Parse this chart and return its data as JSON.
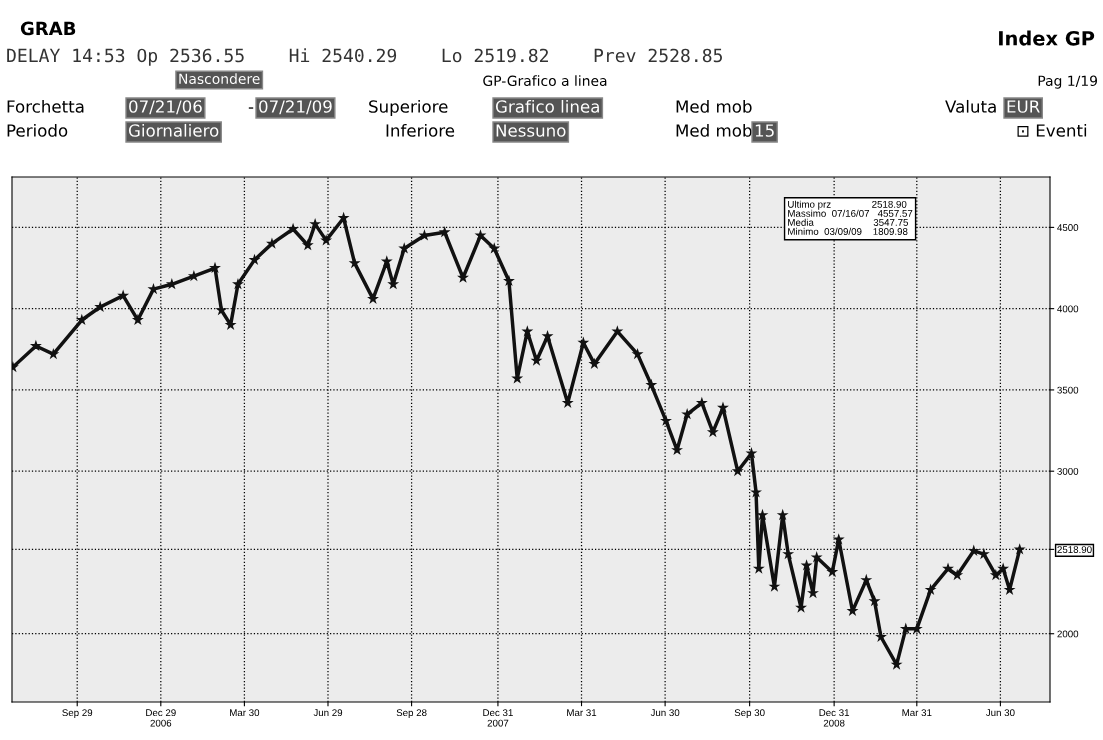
{
  "chart_data": {
    "type": "line",
    "title": "GRAB",
    "subtitle": "DELAY 14:53 Op 2536.55    Hi 2540.29    Lo 2519.82    Prev 2528.85",
    "annotations": [
      "Index GP",
      "Nascondere",
      "GP-Grafico a linea",
      "Pag 1/19",
      "Forchetta",
      "07/21/06",
      "-",
      "07/21/09",
      "Superiore",
      "Grafico linea",
      "Med mob",
      "Valuta",
      "EUR",
      "Periodo",
      "Giornaliero",
      "Inferiore",
      "Nessuno",
      "Med mob",
      "15",
      "⊡ Eventi",
      "Ultimo prz               2518.90\nMassimo  07/16/07   4557.57\nMedia                      3547.75\nMinimo  03/09/09    1809.98"
    ],
    "series": [
      {
        "color": "#111111",
        "x": [
          "2006-07-21",
          "2006-08-15",
          "2006-09-03",
          "2006-10-04",
          "2006-10-24",
          "2006-11-18",
          "2006-12-04",
          "2006-12-21",
          "2007-01-10",
          "2007-02-03",
          "2007-02-26",
          "2007-03-05",
          "2007-03-15",
          "2007-03-23",
          "2007-04-10",
          "2007-04-29",
          "2007-05-22",
          "2007-06-07",
          "2007-06-15",
          "2007-06-27",
          "2007-07-16",
          "2007-07-28",
          "2007-08-17",
          "2007-09-01",
          "2007-09-08",
          "2007-09-20",
          "2007-10-12",
          "2007-11-03",
          "2007-11-23",
          "2007-12-12",
          "2007-12-27",
          "2008-01-12",
          "2008-01-21",
          "2008-02-01",
          "2008-02-11",
          "2008-02-23",
          "2008-03-16",
          "2008-04-02",
          "2008-04-14",
          "2008-05-09",
          "2008-05-31",
          "2008-06-15",
          "2008-07-01",
          "2008-07-13",
          "2008-07-24",
          "2008-08-09",
          "2008-08-21",
          "2008-09-01",
          "2008-09-17",
          "2008-10-02",
          "2008-10-07",
          "2008-10-10",
          "2008-10-14",
          "2008-10-27",
          "2008-11-05",
          "2008-11-11",
          "2008-11-25",
          "2008-12-01",
          "2008-12-08",
          "2008-12-12",
          "2008-12-29",
          "2009-01-05",
          "2009-01-20",
          "2009-02-04",
          "2009-02-13",
          "2009-02-20",
          "2009-03-09",
          "2009-03-19",
          "2009-03-31",
          "2009-04-15",
          "2009-05-04",
          "2009-05-14",
          "2009-06-01",
          "2009-06-12",
          "2009-06-25",
          "2009-07-03",
          "2009-07-10",
          "2009-07-21"
        ],
        "values": [
          3640,
          3770,
          3720,
          3930,
          4010,
          4080,
          3930,
          4120,
          4150,
          4200,
          4250,
          3990,
          3900,
          4150,
          4300,
          4400,
          4490,
          4390,
          4520,
          4420,
          4557.57,
          4280,
          4060,
          4290,
          4150,
          4370,
          4450,
          4470,
          4190,
          4450,
          4370,
          4170,
          3570,
          3860,
          3680,
          3830,
          3420,
          3790,
          3660,
          3860,
          3720,
          3530,
          3310,
          3130,
          3350,
          3420,
          3240,
          3390,
          3000,
          3110,
          2870,
          2400,
          2730,
          2290,
          2730,
          2490,
          2160,
          2420,
          2250,
          2470,
          2380,
          2580,
          2140,
          2330,
          2200,
          1980,
          1809.98,
          2030,
          2030,
          2270,
          2400,
          2360,
          2510,
          2490,
          2360,
          2400,
          2270,
          2518.9
        ]
      }
    ],
    "xlim": [
      "2006-07-20",
      "2009-08-23"
    ],
    "xticks": [
      {
        "value": "2006-09-29",
        "label": "Sep 29"
      },
      {
        "value": "2006-12-29",
        "label": "Dec 29\n2006"
      },
      {
        "value": "2007-03-30",
        "label": "Mar 30"
      },
      {
        "value": "2007-06-29",
        "label": "Jun 29"
      },
      {
        "value": "2007-09-28",
        "label": "Sep 28"
      },
      {
        "value": "2007-12-31",
        "label": "Dec 31\n2007"
      },
      {
        "value": "2008-03-31",
        "label": "Mar 31"
      },
      {
        "value": "2008-06-30",
        "label": "Jun 30"
      },
      {
        "value": "2008-09-30",
        "label": "Sep 30"
      },
      {
        "value": "2008-12-31",
        "label": "Dec 31\n2008"
      },
      {
        "value": "2009-03-31",
        "label": "Mar 31"
      },
      {
        "value": "2009-06-30",
        "label": "Jun 30"
      }
    ],
    "ylim": [
      1580,
      4810
    ],
    "yticks": [
      2000,
      {
        "value": 2518.9,
        "label": "2518.90"
      },
      3000,
      3500,
      4000,
      4500
    ],
    "grid": true,
    "marker": "star",
    "line_style": "solid"
  }
}
